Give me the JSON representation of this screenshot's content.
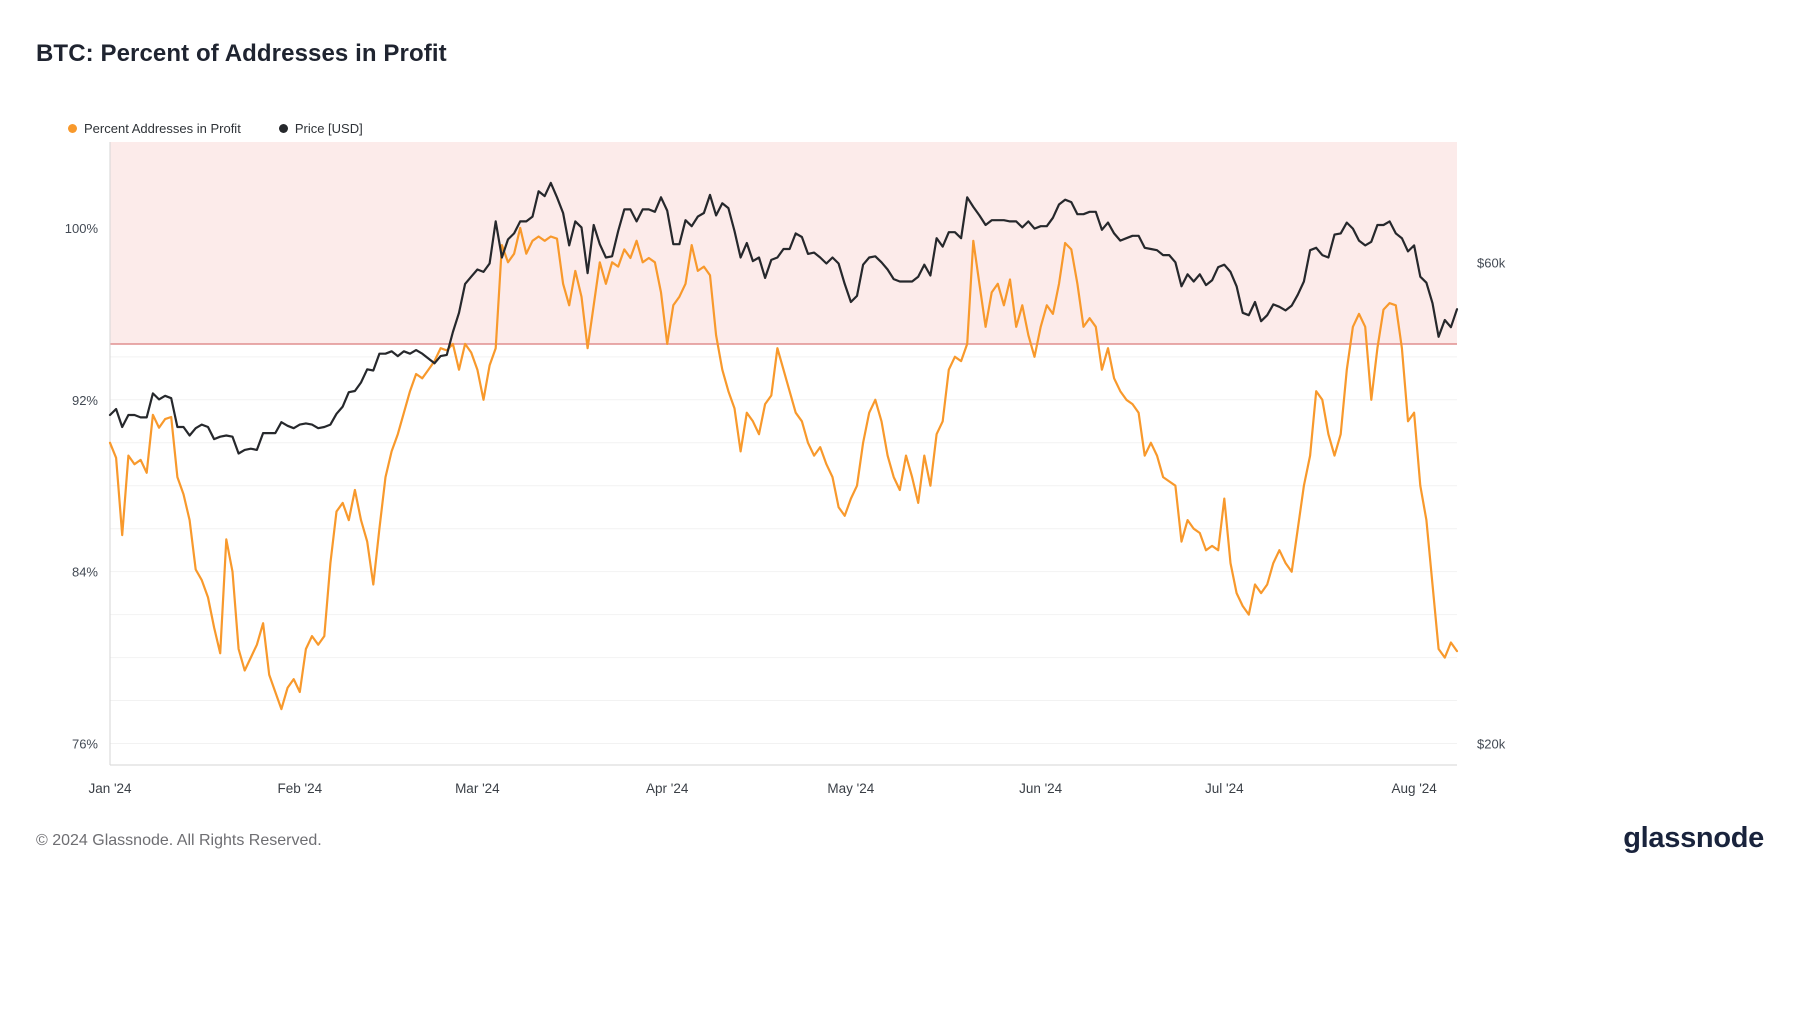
{
  "page": {
    "title": "BTC: Percent of Addresses in Profit",
    "footer_copyright": "© 2024 Glassnode. All Rights Reserved.",
    "brand": "glassnode",
    "brand_color": "#19233c",
    "background_color": "#ffffff"
  },
  "legend": [
    {
      "label": "Percent Addresses in Profit",
      "color": "#F8992C"
    },
    {
      "label": "Price [USD]",
      "color": "#26282c"
    }
  ],
  "chart_data": {
    "type": "line",
    "title": "BTC: Percent of Addresses in Profit",
    "x_tick_labels": [
      "Jan '24",
      "Feb '24",
      "Mar '24",
      "Apr '24",
      "May '24",
      "Jun '24",
      "Jul '24",
      "Aug '24"
    ],
    "x_tick_day_index": [
      0,
      31,
      60,
      91,
      121,
      152,
      182,
      213
    ],
    "days_total": 220,
    "left_axis": {
      "label": "Percent Addresses in Profit",
      "range": [
        75,
        104
      ],
      "ticks": [
        100,
        92,
        84,
        76
      ],
      "tick_labels": [
        "100%",
        "92%",
        "84%",
        "76%"
      ]
    },
    "right_axis": {
      "label": "Price [USD]",
      "range_k": [
        18.2,
        70
      ],
      "ticks_k": [
        60,
        20
      ],
      "tick_labels": [
        "$60k",
        "$20k"
      ]
    },
    "band": {
      "above_percent": 94.6,
      "fill": "#fcebea",
      "edge": "#e08f8f"
    },
    "grid": {
      "percent_from": 76,
      "percent_to": 94,
      "percent_step": 2,
      "color": "#f2f2f2",
      "axis_line_color": "#d6d6d6"
    },
    "series": [
      {
        "name": "Percent Addresses in Profit",
        "axis": "left",
        "color": "#F8992C",
        "values": [
          90.0,
          89.3,
          85.7,
          89.4,
          89.0,
          89.2,
          88.6,
          91.3,
          90.7,
          91.1,
          91.2,
          88.4,
          87.6,
          86.4,
          84.1,
          83.6,
          82.8,
          81.4,
          80.2,
          85.5,
          84.0,
          80.4,
          79.4,
          80.0,
          80.6,
          81.6,
          79.2,
          78.4,
          77.6,
          78.6,
          79.0,
          78.4,
          80.4,
          81.0,
          80.6,
          81.0,
          84.4,
          86.8,
          87.2,
          86.4,
          87.8,
          86.4,
          85.4,
          83.4,
          86.0,
          88.4,
          89.6,
          90.4,
          91.4,
          92.4,
          93.2,
          93.0,
          93.4,
          93.8,
          94.4,
          94.3,
          94.6,
          93.4,
          94.6,
          94.2,
          93.4,
          92.0,
          93.6,
          94.4,
          99.2,
          98.4,
          98.8,
          100.0,
          98.8,
          99.4,
          99.6,
          99.4,
          99.6,
          99.5,
          97.4,
          96.4,
          98.0,
          96.8,
          94.4,
          96.4,
          98.4,
          97.4,
          98.4,
          98.2,
          99.0,
          98.6,
          99.4,
          98.4,
          98.6,
          98.4,
          97.0,
          94.6,
          96.4,
          96.8,
          97.4,
          99.2,
          98.0,
          98.2,
          97.8,
          95.0,
          93.4,
          92.4,
          91.6,
          89.6,
          91.4,
          91.0,
          90.4,
          91.8,
          92.2,
          94.4,
          93.4,
          92.4,
          91.4,
          91.0,
          90.0,
          89.4,
          89.8,
          89.0,
          88.4,
          87.0,
          86.6,
          87.4,
          88.0,
          90.0,
          91.4,
          92.0,
          91.0,
          89.4,
          88.4,
          87.8,
          89.4,
          88.4,
          87.2,
          89.4,
          88.0,
          90.4,
          91.0,
          93.4,
          94.0,
          93.8,
          94.6,
          99.4,
          97.4,
          95.4,
          97.0,
          97.4,
          96.4,
          97.6,
          95.4,
          96.4,
          95.0,
          94.0,
          95.4,
          96.4,
          96.0,
          97.4,
          99.3,
          99.0,
          97.4,
          95.4,
          95.8,
          95.4,
          93.4,
          94.4,
          93.0,
          92.4,
          92.0,
          91.8,
          91.4,
          89.4,
          90.0,
          89.4,
          88.4,
          88.2,
          88.0,
          85.4,
          86.4,
          86.0,
          85.8,
          85.0,
          85.2,
          85.0,
          87.4,
          84.4,
          83.0,
          82.4,
          82.0,
          83.4,
          83.0,
          83.4,
          84.4,
          85.0,
          84.4,
          84.0,
          86.0,
          88.0,
          89.4,
          92.4,
          92.0,
          90.4,
          89.4,
          90.4,
          93.4,
          95.4,
          96.0,
          95.4,
          92.0,
          94.4,
          96.2,
          96.5,
          96.4,
          94.4,
          91.0,
          91.4,
          88.0,
          86.4,
          83.4,
          80.4,
          80.0,
          80.7,
          80.3
        ]
      },
      {
        "name": "Price [USD]",
        "axis": "right",
        "color": "#26282c",
        "values_usd_k": [
          47.3,
          47.8,
          46.3,
          47.3,
          47.3,
          47.1,
          47.1,
          49.1,
          48.6,
          48.9,
          48.7,
          46.3,
          46.3,
          45.6,
          46.2,
          46.5,
          46.3,
          45.3,
          45.5,
          45.6,
          45.5,
          44.1,
          44.4,
          44.5,
          44.4,
          45.8,
          45.8,
          45.8,
          46.7,
          46.4,
          46.2,
          46.5,
          46.6,
          46.5,
          46.2,
          46.3,
          46.5,
          47.4,
          48.0,
          49.2,
          49.3,
          50.0,
          51.1,
          51.0,
          52.4,
          52.4,
          52.6,
          52.2,
          52.6,
          52.4,
          52.7,
          52.4,
          52.0,
          51.6,
          52.2,
          52.3,
          54.2,
          55.8,
          58.2,
          58.8,
          59.4,
          59.2,
          59.9,
          63.4,
          60.4,
          61.9,
          62.4,
          63.4,
          63.4,
          63.8,
          65.9,
          65.5,
          66.6,
          65.4,
          64.1,
          61.4,
          63.4,
          62.9,
          59.1,
          63.1,
          61.5,
          60.4,
          60.5,
          62.6,
          64.4,
          64.4,
          63.4,
          64.4,
          64.4,
          64.2,
          65.4,
          64.3,
          61.5,
          61.5,
          63.5,
          63.0,
          63.8,
          64.1,
          65.6,
          63.9,
          64.9,
          64.5,
          62.6,
          60.4,
          61.6,
          60.1,
          60.4,
          58.7,
          60.2,
          60.4,
          61.1,
          61.1,
          62.4,
          62.1,
          60.7,
          60.8,
          60.4,
          59.9,
          60.4,
          59.9,
          58.2,
          56.7,
          57.2,
          59.8,
          60.4,
          60.5,
          60.0,
          59.4,
          58.6,
          58.4,
          58.4,
          58.4,
          58.8,
          59.8,
          58.9,
          62.0,
          61.3,
          62.5,
          62.5,
          62.0,
          65.4,
          64.6,
          63.9,
          63.1,
          63.5,
          63.5,
          63.5,
          63.4,
          63.4,
          62.9,
          63.4,
          62.8,
          63.0,
          63.0,
          63.7,
          64.8,
          65.2,
          65.0,
          64.0,
          64.0,
          64.2,
          64.2,
          62.7,
          63.3,
          62.4,
          61.8,
          62.0,
          62.2,
          62.2,
          61.2,
          61.1,
          61.0,
          60.6,
          60.6,
          60.0,
          58.0,
          59.0,
          58.4,
          59.0,
          58.1,
          58.5,
          59.6,
          59.8,
          59.2,
          58.0,
          55.8,
          55.6,
          56.7,
          55.1,
          55.6,
          56.5,
          56.3,
          56.0,
          56.4,
          57.3,
          58.4,
          61.0,
          61.2,
          60.6,
          60.4,
          62.3,
          62.4,
          63.3,
          62.8,
          61.8,
          61.4,
          61.7,
          63.1,
          63.1,
          63.4,
          62.4,
          62.0,
          60.9,
          61.4,
          58.8,
          58.3,
          56.6,
          53.8,
          55.2,
          54.6,
          56.1
        ]
      }
    ]
  }
}
